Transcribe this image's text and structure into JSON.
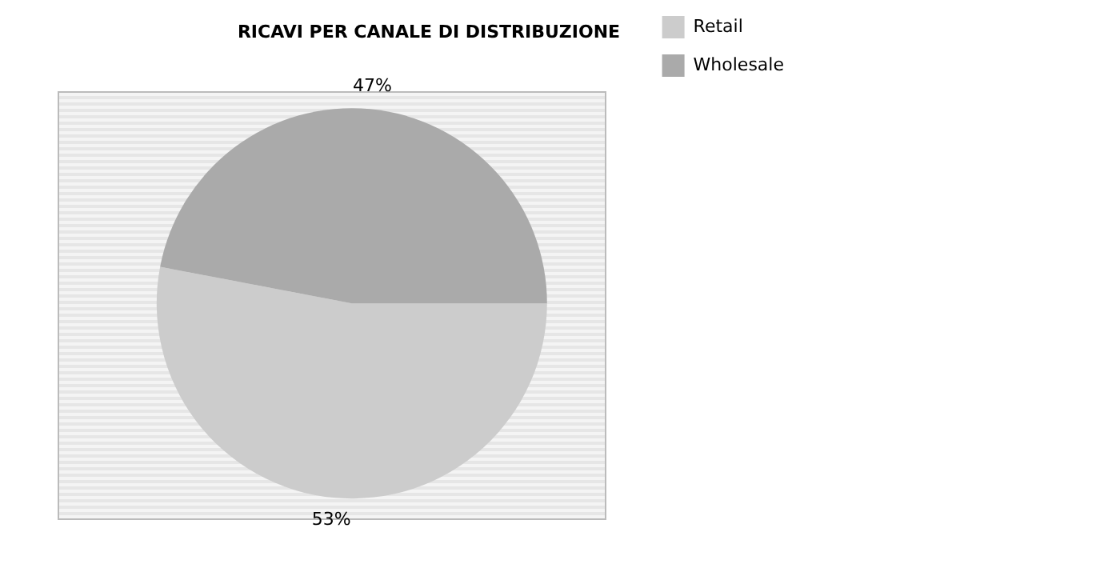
{
  "chart_data": {
    "type": "pie",
    "title": "RICAVI PER CANALE DI DISTRIBUZIONE",
    "categories": [
      "Retail",
      "Wholesale"
    ],
    "values": [
      53,
      47
    ],
    "colors": [
      "#cccccc",
      "#aaaaaa"
    ],
    "value_labels": [
      "53%",
      "47%"
    ],
    "legend": "right"
  }
}
